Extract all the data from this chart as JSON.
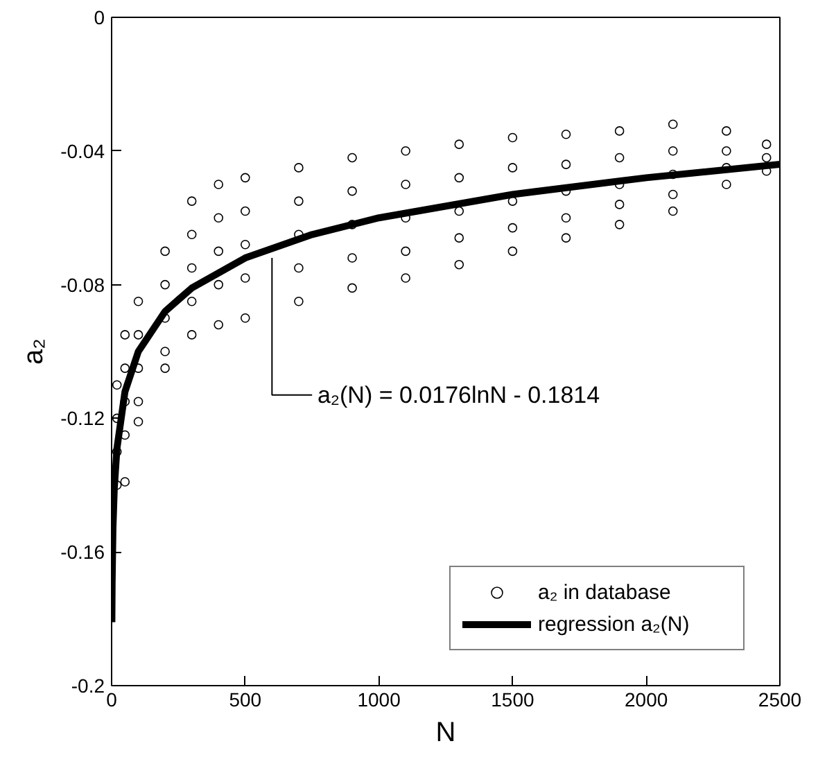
{
  "chart_data": {
    "type": "scatter",
    "xlabel": "N",
    "ylabel": "a₂",
    "xlim": [
      0,
      2500
    ],
    "xticks": [
      0,
      500,
      1000,
      1500,
      2000,
      2500
    ],
    "ylim": [
      -0.2,
      0
    ],
    "yticks": [
      -0.2,
      -0.16,
      -0.12,
      -0.08,
      -0.04,
      0
    ],
    "grid": false,
    "legend": "bottom right",
    "annotations": [
      {
        "text": "a₂(N) = 0.0176lnN - 0.1814",
        "x": 600,
        "y": -0.072
      }
    ],
    "series": [
      {
        "name": "a₂ in database",
        "marker": "circle",
        "color": "#000000",
        "x": [
          20,
          20,
          20,
          20,
          50,
          50,
          50,
          50,
          50,
          100,
          100,
          100,
          100,
          100,
          200,
          200,
          200,
          200,
          200,
          300,
          300,
          300,
          300,
          300,
          400,
          400,
          400,
          400,
          400,
          500,
          500,
          500,
          500,
          500,
          700,
          700,
          700,
          700,
          700,
          900,
          900,
          900,
          900,
          900,
          1100,
          1100,
          1100,
          1100,
          1100,
          1300,
          1300,
          1300,
          1300,
          1300,
          1500,
          1500,
          1500,
          1500,
          1500,
          1700,
          1700,
          1700,
          1700,
          1700,
          1900,
          1900,
          1900,
          1900,
          1900,
          2100,
          2100,
          2100,
          2100,
          2100,
          2300,
          2300,
          2300,
          2300,
          2450,
          2450,
          2450
        ],
        "values": [
          -0.11,
          -0.12,
          -0.13,
          -0.14,
          -0.095,
          -0.105,
          -0.115,
          -0.125,
          -0.139,
          -0.085,
          -0.095,
          -0.105,
          -0.115,
          -0.121,
          -0.07,
          -0.08,
          -0.09,
          -0.1,
          -0.105,
          -0.055,
          -0.065,
          -0.075,
          -0.085,
          -0.095,
          -0.05,
          -0.06,
          -0.07,
          -0.08,
          -0.092,
          -0.048,
          -0.058,
          -0.068,
          -0.078,
          -0.09,
          -0.045,
          -0.055,
          -0.065,
          -0.075,
          -0.085,
          -0.042,
          -0.052,
          -0.062,
          -0.072,
          -0.081,
          -0.04,
          -0.05,
          -0.06,
          -0.07,
          -0.078,
          -0.038,
          -0.048,
          -0.058,
          -0.066,
          -0.074,
          -0.036,
          -0.045,
          -0.055,
          -0.063,
          -0.07,
          -0.035,
          -0.044,
          -0.052,
          -0.06,
          -0.066,
          -0.034,
          -0.042,
          -0.05,
          -0.056,
          -0.062,
          -0.032,
          -0.04,
          -0.047,
          -0.053,
          -0.058,
          -0.034,
          -0.04,
          -0.045,
          -0.05,
          -0.038,
          -0.042,
          -0.046
        ]
      },
      {
        "name": "regression a₂(N)",
        "type": "line",
        "marker": "none",
        "line_style": "solid",
        "color": "#000000",
        "x": [
          1,
          2,
          5,
          10,
          20,
          50,
          100,
          200,
          300,
          500,
          750,
          1000,
          1500,
          2000,
          2500
        ],
        "values": [
          -0.181,
          -0.169,
          -0.153,
          -0.141,
          -0.129,
          -0.112,
          -0.1,
          -0.088,
          -0.081,
          -0.072,
          -0.065,
          -0.06,
          -0.053,
          -0.048,
          -0.044
        ]
      }
    ]
  }
}
